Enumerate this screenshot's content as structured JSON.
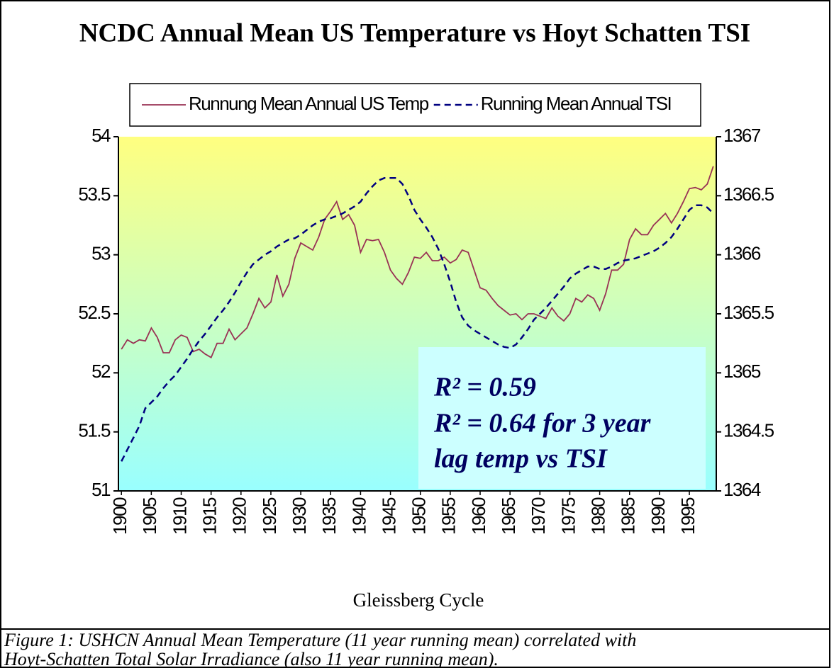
{
  "chart_data": {
    "type": "line",
    "title": "NCDC Annual Mean US Temperature vs Hoyt Schatten TSI",
    "xlabel": "Gleissberg Cycle",
    "annotations": [
      "R² = 0.59",
      "R² = 0.64 for  3 year",
      "lag temp vs TSI"
    ],
    "caption": [
      "Figure 1: USHCN Annual Mean Temperature (11 year running mean) correlated with",
      "Hoyt-Schatten Total Solar Irradiance (also 11 year running mean)."
    ],
    "x": [
      1900,
      1901,
      1902,
      1903,
      1904,
      1905,
      1906,
      1907,
      1908,
      1909,
      1910,
      1911,
      1912,
      1913,
      1914,
      1915,
      1916,
      1917,
      1918,
      1919,
      1920,
      1921,
      1922,
      1923,
      1924,
      1925,
      1926,
      1927,
      1928,
      1929,
      1930,
      1931,
      1932,
      1933,
      1934,
      1935,
      1936,
      1937,
      1938,
      1939,
      1940,
      1941,
      1942,
      1943,
      1944,
      1945,
      1946,
      1947,
      1948,
      1949,
      1950,
      1951,
      1952,
      1953,
      1954,
      1955,
      1956,
      1957,
      1958,
      1959,
      1960,
      1961,
      1962,
      1963,
      1964,
      1965,
      1966,
      1967,
      1968,
      1969,
      1970,
      1971,
      1972,
      1973,
      1974,
      1975,
      1976,
      1977,
      1978,
      1979,
      1980,
      1981,
      1982,
      1983,
      1984,
      1985,
      1986,
      1987,
      1988,
      1989,
      1990,
      1991,
      1992,
      1993,
      1994,
      1995,
      1996,
      1997,
      1998,
      1999
    ],
    "xlim": [
      1899.5,
      1999.5
    ],
    "xticks": [
      1900,
      1905,
      1910,
      1915,
      1920,
      1925,
      1930,
      1935,
      1940,
      1945,
      1950,
      1955,
      1960,
      1965,
      1970,
      1975,
      1980,
      1985,
      1990,
      1995
    ],
    "ylim": [
      51,
      54
    ],
    "yticks": [
      51,
      51.5,
      52,
      52.5,
      53,
      53.5,
      54
    ],
    "y2lim": [
      1364,
      1367
    ],
    "y2ticks": [
      1364,
      1364.5,
      1365,
      1365.5,
      1366,
      1366.5,
      1367
    ],
    "series": [
      {
        "name": "Runnung Mean Annual US Temp",
        "color": "#993355",
        "dash": "solid",
        "values": [
          52.2,
          52.28,
          52.25,
          52.28,
          52.27,
          52.38,
          52.3,
          52.17,
          52.17,
          52.28,
          52.32,
          52.3,
          52.18,
          52.2,
          52.16,
          52.13,
          52.25,
          52.25,
          52.37,
          52.28,
          52.33,
          52.38,
          52.5,
          52.63,
          52.55,
          52.6,
          52.83,
          52.65,
          52.75,
          52.97,
          53.1,
          53.07,
          53.04,
          53.15,
          53.3,
          53.37,
          53.45,
          53.3,
          53.34,
          53.25,
          53.02,
          53.13,
          53.12,
          53.13,
          53.02,
          52.87,
          52.8,
          52.75,
          52.85,
          52.98,
          52.97,
          53.02,
          52.95,
          52.95,
          52.98,
          52.93,
          52.96,
          53.04,
          53.02,
          52.87,
          52.72,
          52.7,
          52.63,
          52.57,
          52.53,
          52.49,
          52.5,
          52.45,
          52.5,
          52.5,
          52.48,
          52.46,
          52.55,
          52.48,
          52.44,
          52.5,
          52.63,
          52.6,
          52.66,
          52.63,
          52.53,
          52.67,
          52.87,
          52.87,
          52.92,
          53.13,
          53.22,
          53.17,
          53.17,
          53.25,
          53.3,
          53.35,
          53.27,
          53.35,
          53.45,
          53.56,
          53.57,
          53.55,
          53.6,
          53.75
        ]
      },
      {
        "name": "Running Mean Annual TSI",
        "color": "#000080",
        "dash": "dashed",
        "axis": "y2",
        "values": [
          1364.25,
          1364.35,
          1364.45,
          1364.55,
          1364.7,
          1364.75,
          1364.8,
          1364.87,
          1364.93,
          1364.98,
          1365.05,
          1365.12,
          1365.2,
          1365.27,
          1365.33,
          1365.4,
          1365.47,
          1365.53,
          1365.6,
          1365.68,
          1365.77,
          1365.85,
          1365.92,
          1365.96,
          1366.0,
          1366.03,
          1366.07,
          1366.1,
          1366.13,
          1366.14,
          1366.17,
          1366.21,
          1366.25,
          1366.28,
          1366.3,
          1366.31,
          1366.33,
          1366.35,
          1366.38,
          1366.41,
          1366.45,
          1366.52,
          1366.58,
          1366.63,
          1366.65,
          1366.65,
          1366.65,
          1366.6,
          1366.5,
          1366.38,
          1366.3,
          1366.23,
          1366.15,
          1366.05,
          1365.92,
          1365.77,
          1365.6,
          1365.47,
          1365.4,
          1365.36,
          1365.33,
          1365.3,
          1365.27,
          1365.24,
          1365.22,
          1365.21,
          1365.24,
          1365.3,
          1365.37,
          1365.45,
          1365.5,
          1365.55,
          1365.61,
          1365.67,
          1365.73,
          1365.8,
          1365.84,
          1365.87,
          1365.9,
          1365.9,
          1365.88,
          1365.88,
          1365.9,
          1365.93,
          1365.95,
          1365.96,
          1365.97,
          1365.99,
          1366.01,
          1366.03,
          1366.06,
          1366.1,
          1366.15,
          1366.22,
          1366.3,
          1366.38,
          1366.42,
          1366.42,
          1366.4,
          1366.35
        ]
      }
    ]
  }
}
